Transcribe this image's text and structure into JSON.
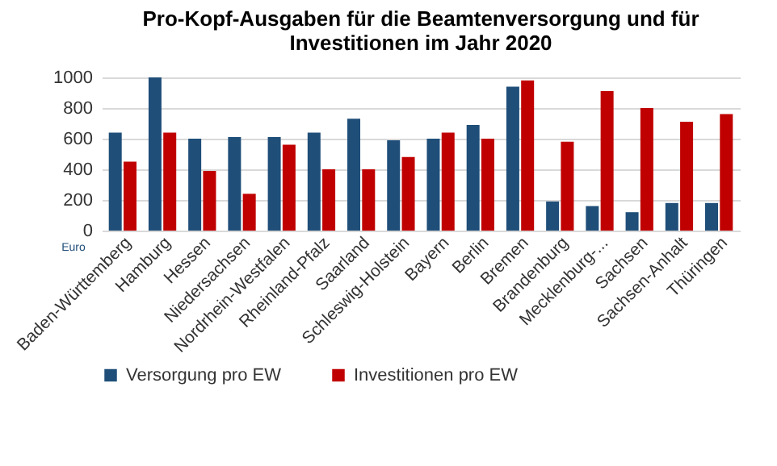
{
  "chart_data": {
    "type": "bar",
    "title": "Pro-Kopf-Ausgaben für die Beamtenversorgung und für Investitionen im Jahr 2020",
    "ylabel": "Euro",
    "categories": [
      "Baden-Württemberg",
      "Hamburg",
      "Hessen",
      "Niedersachsen",
      "Nordrhein-Westfalen",
      "Rheinland-Pfalz",
      "Saarland",
      "Schleswig-Holstein",
      "Bayern",
      "Berlin",
      "Bremen",
      "Brandenburg",
      "Mecklenburg-...",
      "Sachsen",
      "Sachsen-Anhalt",
      "Thüringen"
    ],
    "series": [
      {
        "name": "Versorgung pro EW",
        "color": "#1f4e79",
        "values": [
          640,
          1000,
          600,
          610,
          610,
          640,
          730,
          590,
          600,
          690,
          940,
          190,
          160,
          120,
          180,
          180
        ]
      },
      {
        "name": "Investitionen pro EW",
        "color": "#c00000",
        "values": [
          450,
          640,
          390,
          240,
          560,
          400,
          400,
          480,
          640,
          600,
          980,
          580,
          910,
          800,
          710,
          760
        ]
      }
    ],
    "ylim": [
      0,
      1000
    ],
    "yticks": [
      0,
      200,
      400,
      600,
      800,
      1000
    ],
    "grid": "y",
    "legend": "bottom"
  }
}
